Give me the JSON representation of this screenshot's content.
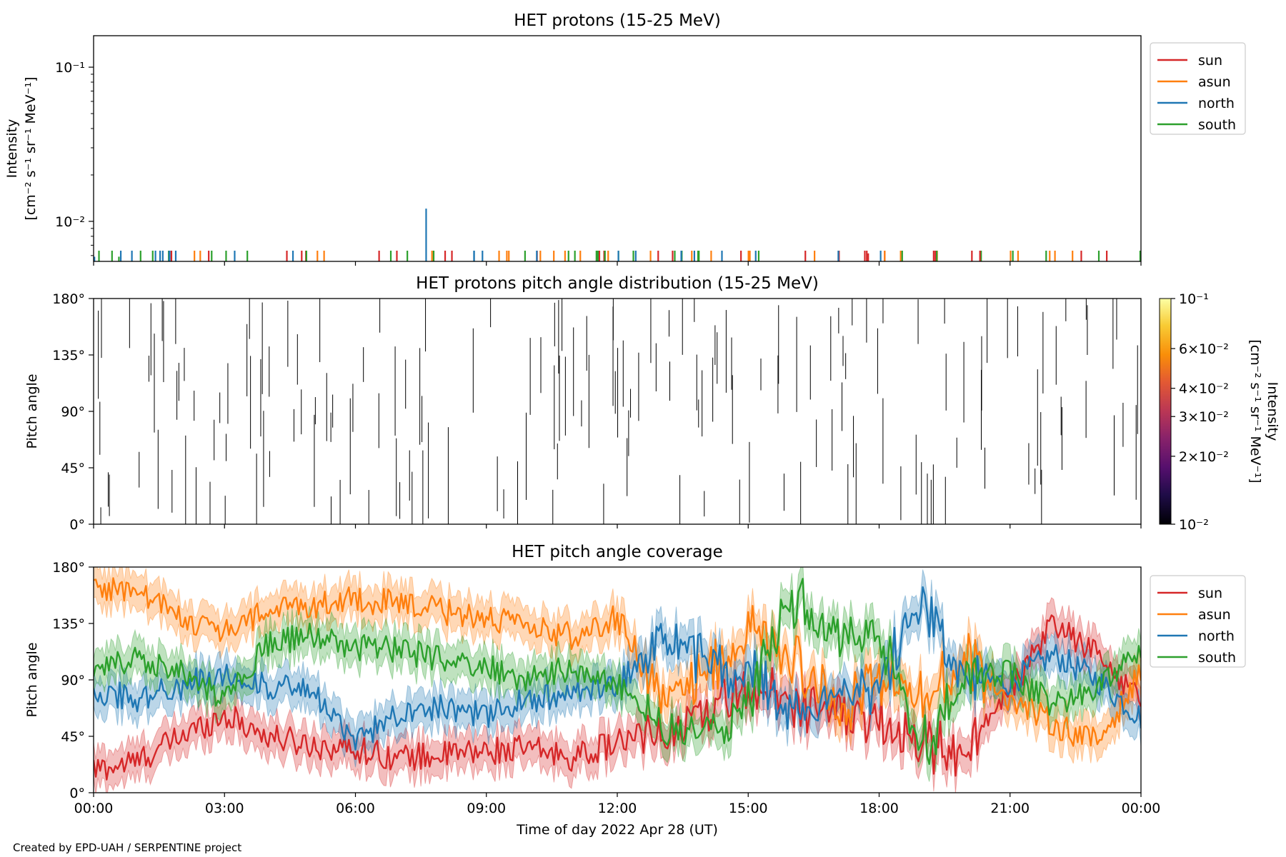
{
  "credit": "Created by EPD-UAH / SERPENTINE project",
  "colors": {
    "sun": "#d62728",
    "asun": "#ff7f0e",
    "north": "#1f77b4",
    "south": "#2ca02c"
  },
  "chart_data": [
    {
      "type": "line",
      "title": "HET protons (15-25 MeV)",
      "ylabel_line1": "Intensity",
      "ylabel_line2": "[cm⁻² s⁻¹ sr⁻¹ MeV⁻¹]",
      "yscale": "log",
      "ylim": [
        0.0055,
        0.16
      ],
      "yticks": [
        {
          "value": 0.1,
          "label": "10⁻¹"
        },
        {
          "value": 0.01,
          "label": "10⁻²"
        }
      ],
      "xlim_hours": [
        0,
        24
      ],
      "legend": {
        "placement": "upper-right-outside",
        "entries": [
          "sun",
          "asun",
          "north",
          "south"
        ]
      },
      "spikes": [
        {
          "series": "north",
          "t": 7.62,
          "value": 0.0121
        },
        {
          "series": "sun",
          "t": 17.75,
          "value": 0.0062
        },
        {
          "series": "north",
          "t": 0.02,
          "value": 0.0059
        },
        {
          "series": "green",
          "t": 0.58,
          "value": 0.0059
        }
      ]
    },
    {
      "type": "heatmap",
      "title": "HET protons pitch angle distribution (15-25 MeV)",
      "ylabel": "Pitch angle",
      "ylim": [
        0,
        180
      ],
      "yticks": [
        "0°",
        "45°",
        "90°",
        "135°",
        "180°"
      ],
      "colorbar": {
        "label": "Intensity",
        "unit": "[cm⁻² s⁻¹ sr⁻¹ MeV⁻¹]",
        "scale": "log",
        "range": [
          0.01,
          0.1
        ],
        "ticks": [
          {
            "value": 0.1,
            "label": "10⁻¹"
          },
          {
            "value": 0.06,
            "label": "6×10⁻²"
          },
          {
            "value": 0.04,
            "label": "4×10⁻²"
          },
          {
            "value": 0.03,
            "label": "3×10⁻²"
          },
          {
            "value": 0.02,
            "label": "2×10⁻²"
          },
          {
            "value": 0.01,
            "label": "10⁻²"
          }
        ]
      }
    },
    {
      "type": "line",
      "title": "HET pitch angle coverage",
      "ylabel": "Pitch angle",
      "xlabel": "Time of day 2022 Apr 28 (UT)",
      "ylim": [
        0,
        180
      ],
      "yticks": [
        "0°",
        "45°",
        "90°",
        "135°",
        "180°"
      ],
      "xticks": [
        "00:00",
        "03:00",
        "06:00",
        "09:00",
        "12:00",
        "15:00",
        "18:00",
        "21:00",
        "00:00"
      ],
      "legend": {
        "placement": "upper-right-outside",
        "entries": [
          "sun",
          "asun",
          "north",
          "south"
        ]
      },
      "series": [
        {
          "name": "sun",
          "t": [
            0,
            1,
            2,
            3,
            4,
            5,
            6,
            7,
            8,
            9,
            10,
            11,
            12,
            13,
            14,
            15,
            16,
            17,
            18,
            19,
            20,
            21,
            22,
            23,
            24
          ],
          "values": [
            18,
            25,
            45,
            62,
            45,
            38,
            35,
            28,
            30,
            33,
            35,
            28,
            40,
            48,
            65,
            80,
            72,
            65,
            55,
            40,
            30,
            80,
            135,
            110,
            75
          ]
        },
        {
          "name": "asun",
          "t": [
            0,
            1,
            2,
            3,
            4,
            5,
            6,
            7,
            8,
            9,
            10,
            11,
            12,
            13,
            14,
            15,
            16,
            17,
            18,
            19,
            20,
            21,
            22,
            23,
            24
          ],
          "values": [
            165,
            160,
            140,
            128,
            145,
            150,
            155,
            150,
            145,
            140,
            130,
            125,
            140,
            78,
            95,
            130,
            110,
            65,
            90,
            75,
            110,
            75,
            55,
            40,
            95
          ]
        },
        {
          "name": "north",
          "t": [
            0,
            1,
            2,
            3,
            4,
            5,
            6,
            7,
            8,
            9,
            10,
            11,
            12,
            13,
            14,
            15,
            16,
            17,
            18,
            19,
            20,
            21,
            22,
            23,
            24
          ],
          "values": [
            82,
            75,
            85,
            95,
            85,
            80,
            40,
            65,
            70,
            60,
            75,
            78,
            85,
            125,
            105,
            95,
            65,
            80,
            85,
            150,
            90,
            88,
            110,
            90,
            60
          ]
        },
        {
          "name": "south",
          "t": [
            0,
            1,
            2,
            3,
            4,
            5,
            6,
            7,
            8,
            9,
            10,
            11,
            12,
            13,
            14,
            15,
            16,
            17,
            18,
            19,
            20,
            21,
            22,
            23,
            24
          ],
          "values": [
            95,
            110,
            95,
            75,
            120,
            125,
            115,
            115,
            105,
            100,
            90,
            100,
            85,
            50,
            45,
            70,
            155,
            130,
            120,
            40,
            90,
            95,
            70,
            80,
            115
          ]
        }
      ]
    }
  ]
}
